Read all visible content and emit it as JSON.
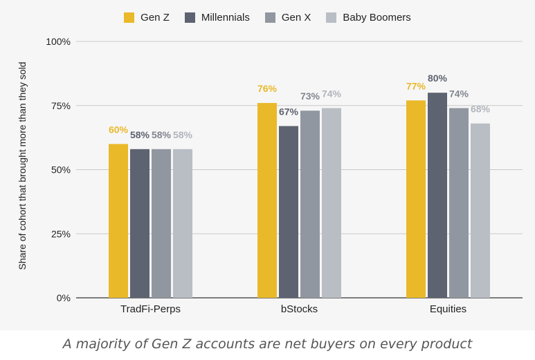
{
  "chart_data": {
    "type": "bar",
    "categories": [
      "TradFi-Perps",
      "bStocks",
      "Equities"
    ],
    "series": [
      {
        "name": "Gen Z",
        "values": [
          60,
          76,
          77
        ],
        "labels": [
          "60%",
          "76%",
          "77%"
        ],
        "color": "#e9b92a"
      },
      {
        "name": "Millennials",
        "values": [
          58,
          67,
          80
        ],
        "labels": [
          "58%",
          "67%",
          "80%"
        ],
        "color": "#5d6370"
      },
      {
        "name": "Gen X",
        "values": [
          58,
          73,
          74
        ],
        "labels": [
          "58%",
          "73%",
          "74%"
        ],
        "color": "#9197a0"
      },
      {
        "name": "Baby Boomers",
        "values": [
          58,
          74,
          68
        ],
        "labels": [
          "58%",
          "74%",
          "68%"
        ],
        "color": "#b9bdc4"
      }
    ],
    "label_colors": [
      "#e9b92a",
      "#5d6370",
      "#80868f",
      "#b1b5bb"
    ],
    "ylabel": "Share of cohort that brought more than they sold",
    "xlabel": "",
    "ylim": [
      0,
      100
    ],
    "yticks": [
      0,
      25,
      50,
      75,
      100
    ],
    "ytick_labels": [
      "0%",
      "25%",
      "50%",
      "75%",
      "100%"
    ],
    "grid": true,
    "legend_position": "top-center"
  },
  "caption": "A majority of Gen Z accounts are net buyers on every product"
}
